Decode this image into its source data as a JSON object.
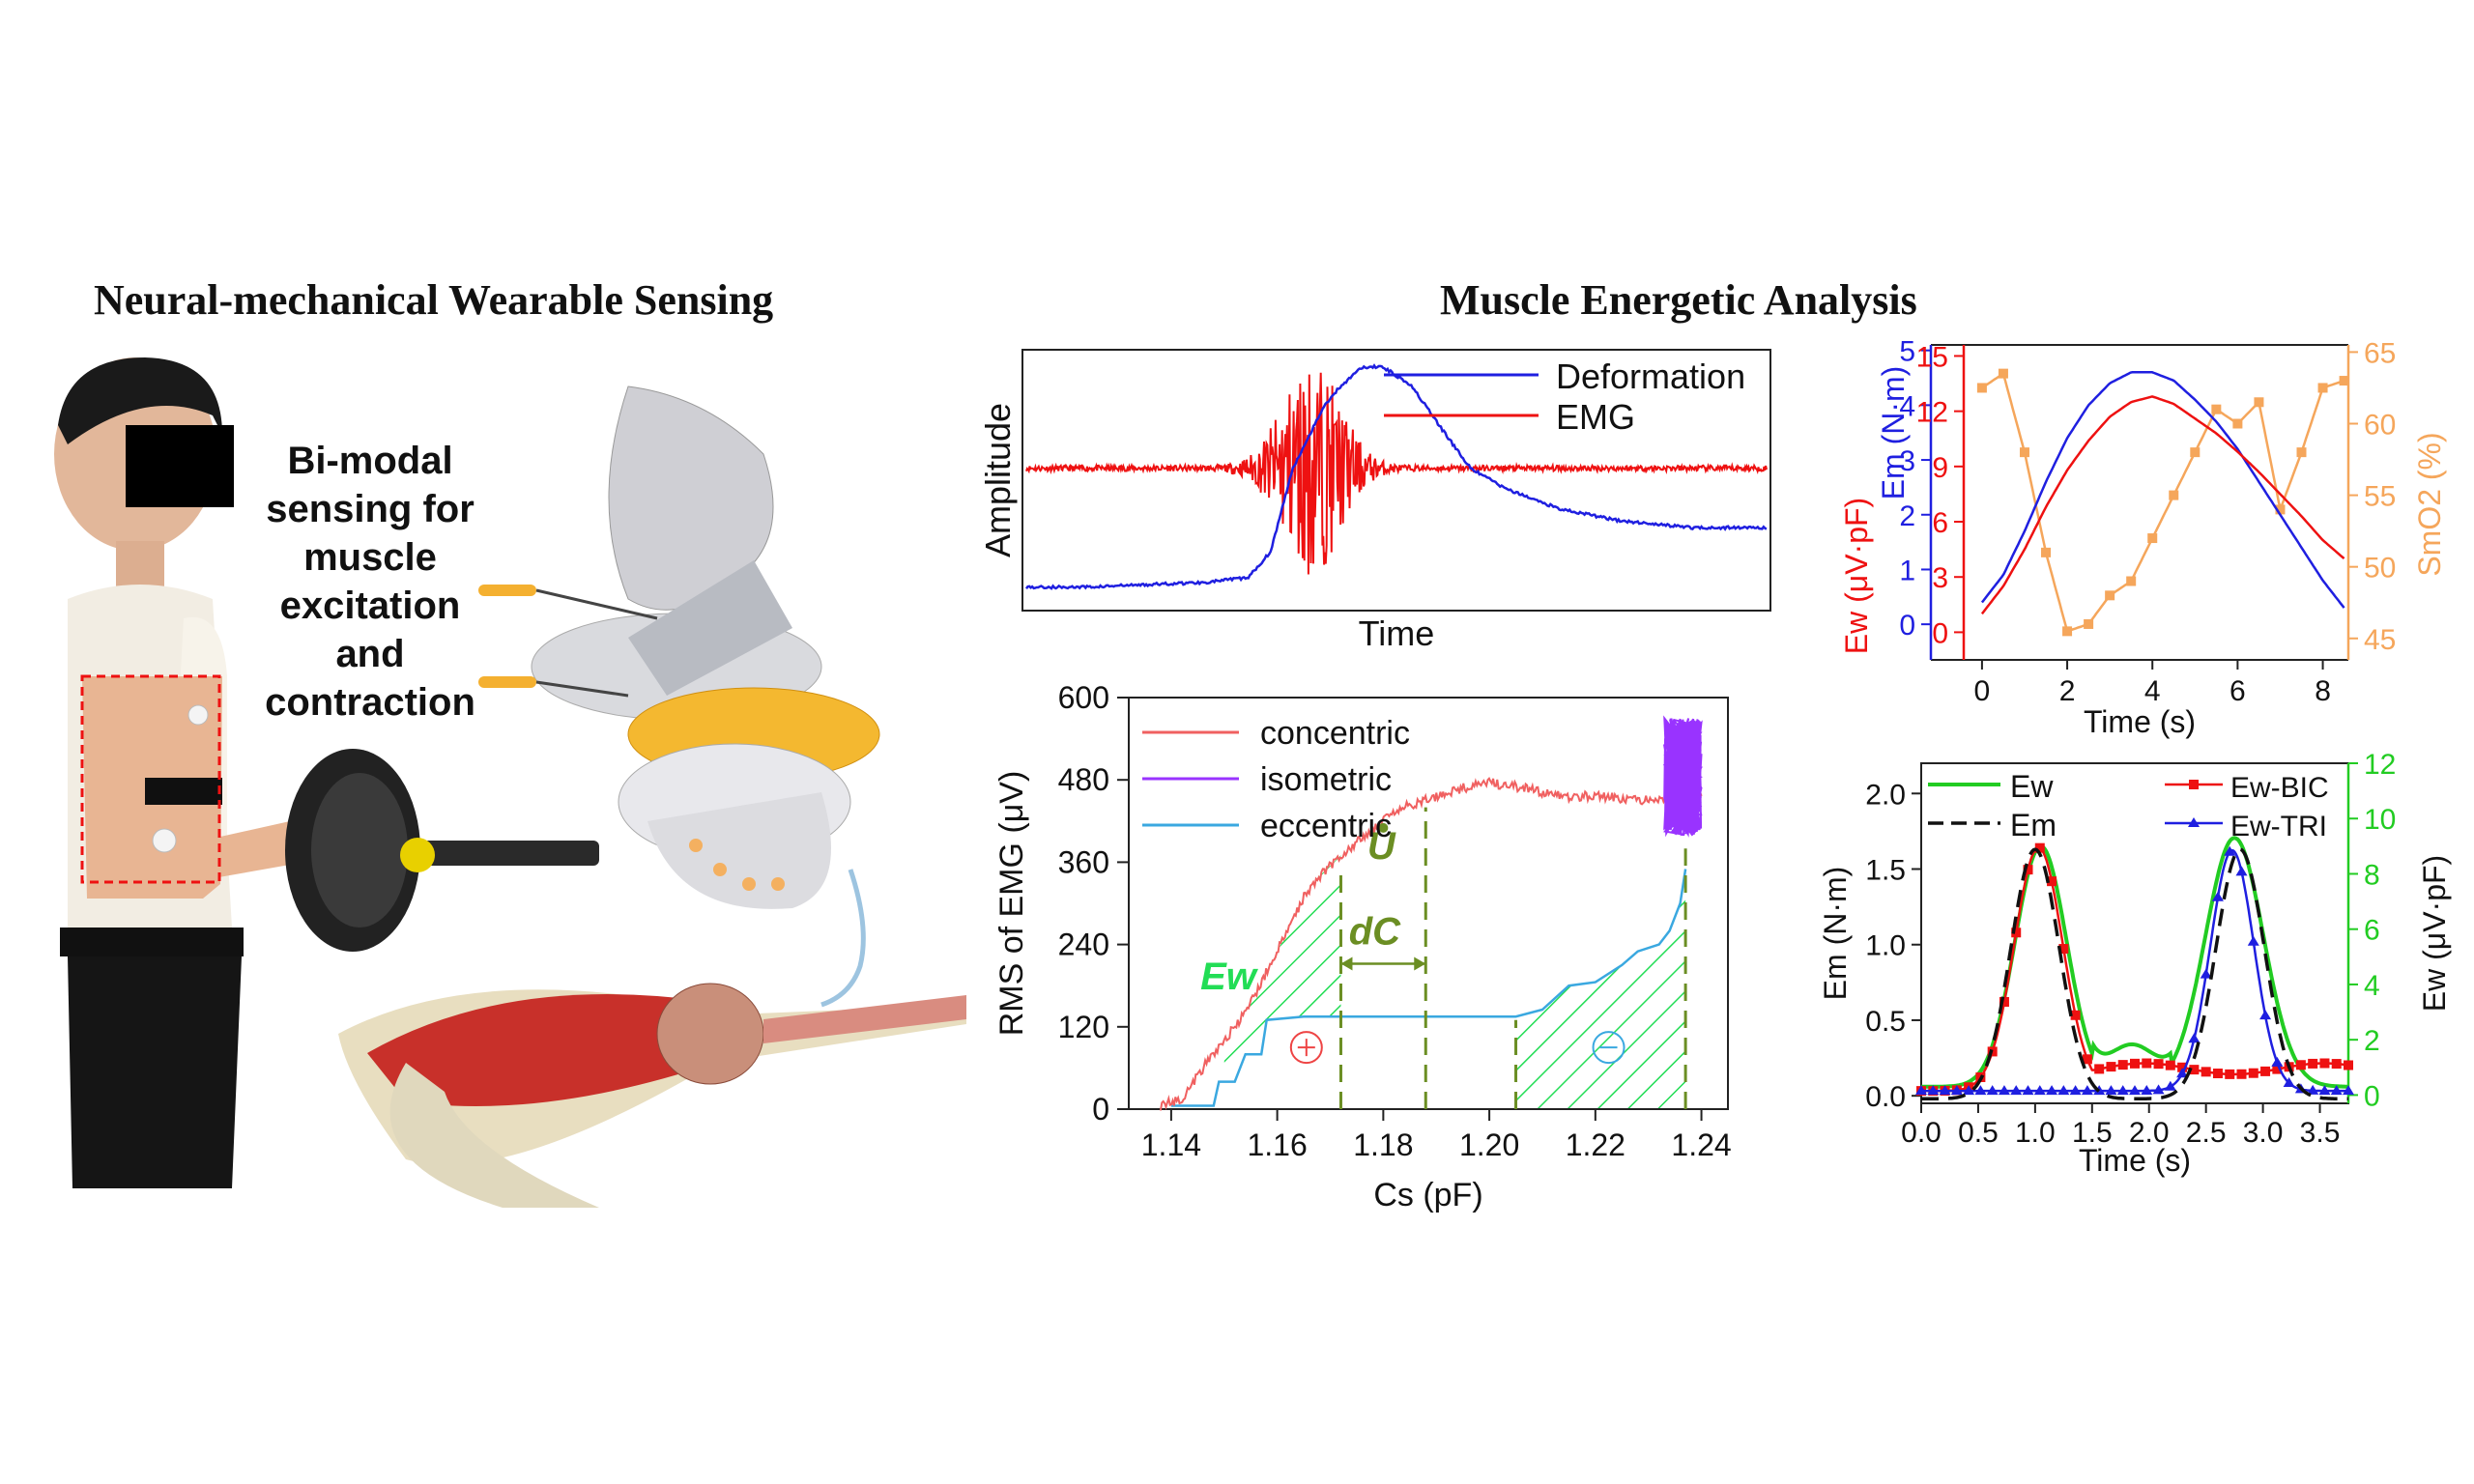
{
  "headings": {
    "left": "Neural-mechanical Wearable Sensing",
    "right": "Muscle Energetic Analysis"
  },
  "illustration": {
    "caption_lines": [
      "Bi-modal",
      "sensing for",
      "muscle",
      "excitation",
      "and",
      "contraction"
    ]
  },
  "colors": {
    "deformation": "#1f1fe0",
    "emg": "#ee1111",
    "concentric": "#f06060",
    "isometric": "#9933ff",
    "eccentric": "#3aa8e0",
    "hatch": "#22dd55",
    "annotation": "#6b8e23",
    "smo2": "#f5a65b",
    "em_black": "#111111",
    "ew_green": "#22cc22",
    "ewbic": "#ee1111",
    "ewtri": "#1f1fe0"
  },
  "chart_data": [
    {
      "id": "signal",
      "type": "line",
      "xlabel": "Time",
      "ylabel": "Amplitude",
      "series": [
        {
          "name": "Deformation",
          "x": [
            0,
            0.08,
            0.16,
            0.24,
            0.3,
            0.33,
            0.36,
            0.4,
            0.42,
            0.45,
            0.48,
            0.52,
            0.56,
            0.6,
            0.65,
            0.72,
            0.8,
            0.9,
            1.0
          ],
          "y": [
            0.05,
            0.05,
            0.06,
            0.07,
            0.09,
            0.2,
            0.55,
            0.8,
            0.88,
            0.97,
            0.98,
            0.9,
            0.72,
            0.55,
            0.46,
            0.38,
            0.33,
            0.3,
            0.3
          ]
        },
        {
          "name": "EMG",
          "baseline": 0.55,
          "burst_center": 0.385,
          "burst_width": 0.12,
          "max_amplitude": 0.45
        }
      ]
    },
    {
      "id": "rms_vs_cs",
      "type": "line",
      "xlabel": "Cs (pF)",
      "ylabel": "RMS of EMG (μV)",
      "xlim": [
        1.132,
        1.245
      ],
      "ylim": [
        0,
        600
      ],
      "xticks": [
        "1.14",
        "1.16",
        "1.18",
        "1.20",
        "1.22",
        "1.24"
      ],
      "yticks": [
        "0",
        "120",
        "240",
        "360",
        "480",
        "600"
      ],
      "legend": [
        "concentric",
        "isometric",
        "eccentric"
      ],
      "annotations": [
        "U",
        "dC",
        "Ew"
      ],
      "series": [
        {
          "name": "concentric",
          "x": [
            1.138,
            1.142,
            1.146,
            1.15,
            1.154,
            1.158,
            1.162,
            1.165,
            1.168,
            1.172,
            1.176,
            1.18,
            1.184,
            1.188,
            1.192,
            1.196,
            1.2,
            1.205,
            1.21,
            1.215,
            1.22,
            1.225,
            1.23,
            1.235,
            1.24
          ],
          "y": [
            5,
            15,
            60,
            100,
            140,
            200,
            260,
            310,
            340,
            370,
            395,
            420,
            440,
            450,
            462,
            470,
            476,
            470,
            462,
            455,
            458,
            452,
            450,
            455,
            462
          ]
        },
        {
          "name": "isometric",
          "x_range": [
            1.233,
            1.24
          ],
          "y_range": [
            400,
            570
          ]
        },
        {
          "name": "eccentric",
          "x": [
            1.14,
            1.148,
            1.149,
            1.152,
            1.154,
            1.157,
            1.158,
            1.165,
            1.18,
            1.195,
            1.205,
            1.21,
            1.215,
            1.22,
            1.225,
            1.228,
            1.232,
            1.234,
            1.236,
            1.237
          ],
          "y": [
            5,
            5,
            40,
            40,
            80,
            80,
            130,
            135,
            135,
            135,
            135,
            145,
            180,
            185,
            210,
            230,
            240,
            260,
            300,
            350
          ]
        }
      ]
    },
    {
      "id": "multi_axis",
      "type": "line",
      "xlabel": "Time (s)",
      "xlim": [
        -1.2,
        8.6
      ],
      "xticks": [
        "0",
        "2",
        "4",
        "6",
        "8"
      ],
      "axes": {
        "em": {
          "label": "Em (N·m)",
          "ticks": [
            "0",
            "1",
            "2",
            "3",
            "4",
            "5"
          ],
          "lim": [
            -0.65,
            5.1
          ]
        },
        "ew": {
          "label": "Ew (μV·pF)",
          "ticks": [
            "0",
            "3",
            "6",
            "9",
            "12",
            "15"
          ],
          "lim": [
            -1.5,
            15.6
          ]
        },
        "smo2": {
          "label": "SmO2 (%)",
          "ticks": [
            "45",
            "50",
            "55",
            "60",
            "65"
          ],
          "lim": [
            43.5,
            65.5
          ]
        }
      },
      "series": [
        {
          "name": "Em",
          "x": [
            0,
            0.5,
            1,
            1.5,
            2,
            2.5,
            3,
            3.5,
            4,
            4.5,
            5,
            5.5,
            6,
            6.5,
            7,
            7.5,
            8,
            8.5
          ],
          "y": [
            0.4,
            0.9,
            1.7,
            2.6,
            3.4,
            4.0,
            4.4,
            4.6,
            4.6,
            4.45,
            4.1,
            3.7,
            3.2,
            2.6,
            2.0,
            1.4,
            0.8,
            0.3
          ]
        },
        {
          "name": "Ew",
          "x": [
            0,
            0.5,
            1,
            1.5,
            2,
            2.5,
            3,
            3.5,
            4,
            4.5,
            5,
            5.5,
            6,
            6.5,
            7,
            7.5,
            8,
            8.5
          ],
          "y": [
            1.0,
            2.5,
            4.5,
            6.8,
            8.8,
            10.4,
            11.7,
            12.5,
            12.8,
            12.4,
            11.6,
            10.8,
            9.8,
            8.7,
            7.5,
            6.3,
            5.0,
            4.0
          ]
        },
        {
          "name": "SmO2",
          "x": [
            0,
            0.5,
            1,
            1.5,
            2,
            2.5,
            3,
            3.5,
            4,
            4.5,
            5,
            5.5,
            6,
            6.5,
            7,
            7.5,
            8,
            8.5
          ],
          "y": [
            62.5,
            63.5,
            58,
            51,
            45.5,
            46,
            48,
            49,
            52,
            55,
            58,
            61,
            60,
            61.5,
            54,
            58,
            62.5,
            63
          ]
        }
      ]
    },
    {
      "id": "em_ew",
      "type": "line",
      "xlabel": "Time (s)",
      "xlim": [
        0,
        3.75
      ],
      "xticks": [
        "0.0",
        "0.5",
        "1.0",
        "1.5",
        "2.0",
        "2.5",
        "3.0",
        "3.5"
      ],
      "axes": {
        "em": {
          "label": "Em (N·m)",
          "ticks": [
            "0.0",
            "0.5",
            "1.0",
            "1.5",
            "2.0"
          ],
          "lim": [
            -0.05,
            2.2
          ]
        },
        "ew": {
          "label": "Ew (μV·pF)",
          "ticks": [
            "0",
            "2",
            "4",
            "6",
            "8",
            "10",
            "12"
          ],
          "lim": [
            -0.3,
            12
          ]
        }
      },
      "legend": [
        "Ew",
        "Em",
        "Ew-BIC",
        "Ew-TRI"
      ],
      "series": [
        {
          "name": "Em",
          "peaks": [
            [
              1.0,
              1.65,
              0.3
            ],
            [
              2.8,
              1.65,
              0.3
            ]
          ],
          "baseline": -0.02
        },
        {
          "name": "Ew",
          "peaks": [
            [
              1.05,
              8.7,
              0.32
            ],
            [
              2.75,
              9.0,
              0.36
            ]
          ],
          "baseline": 0.3
        },
        {
          "name": "Ew-BIC",
          "peaks": [
            [
              1.03,
              8.8,
              0.3
            ]
          ],
          "tail": 1.0
        },
        {
          "name": "Ew-TRI",
          "peaks": [
            [
              2.73,
              8.7,
              0.27
            ]
          ],
          "baseline": 0.15
        }
      ]
    }
  ]
}
